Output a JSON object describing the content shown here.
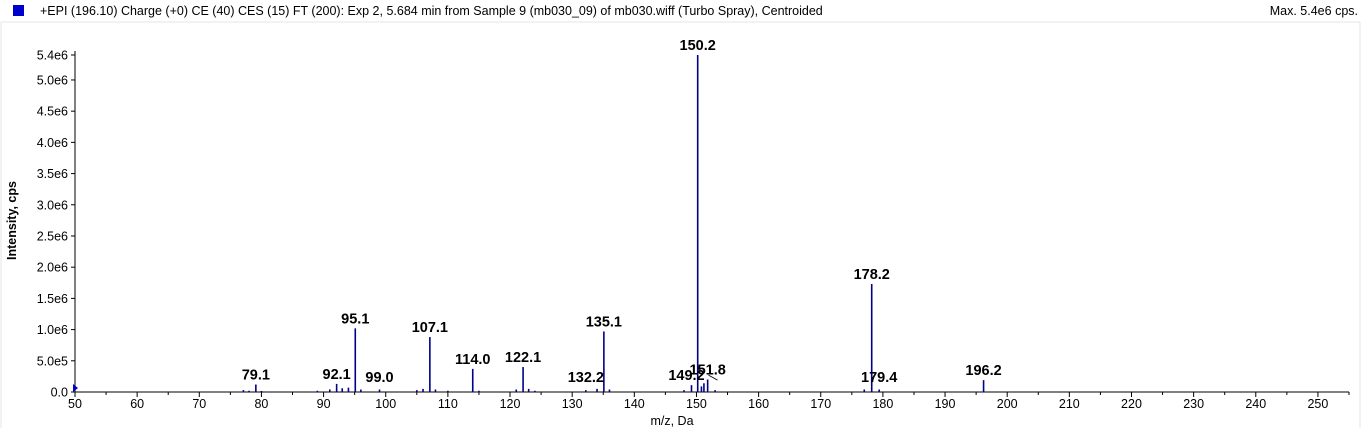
{
  "header": {
    "legend_color": "#0000cc",
    "title": "+EPI (196.10) Charge (+0) CE (40) CES (15) FT (200): Exp 2, 5.684 min from Sample 9 (mb030_09) of mb030.wiff (Turbo Spray), Centroided",
    "max_label": "Max. 5.4e6 cps."
  },
  "chart_data": {
    "type": "bar",
    "title": "+EPI (196.10) Charge (+0) CE (40) CES (15) FT (200): Exp 2, 5.684 min from Sample 9 (mb030_09) of mb030.wiff (Turbo Spray), Centroided",
    "xlabel": "m/z, Da",
    "ylabel": "Intensity, cps",
    "xlim": [
      50,
      255
    ],
    "ylim": [
      0,
      5400000.0
    ],
    "xticks": [
      50,
      60,
      70,
      80,
      90,
      100,
      110,
      120,
      130,
      140,
      150,
      160,
      170,
      180,
      190,
      200,
      210,
      220,
      230,
      240,
      250
    ],
    "yticks": [
      {
        "value": 0,
        "label": "0.0"
      },
      {
        "value": 500000,
        "label": "5.0e5"
      },
      {
        "value": 1000000,
        "label": "1.0e6"
      },
      {
        "value": 1500000,
        "label": "1.5e6"
      },
      {
        "value": 2000000,
        "label": "2.0e6"
      },
      {
        "value": 2500000,
        "label": "2.5e6"
      },
      {
        "value": 3000000,
        "label": "3.0e6"
      },
      {
        "value": 3500000,
        "label": "3.5e6"
      },
      {
        "value": 4000000,
        "label": "4.0e6"
      },
      {
        "value": 4500000,
        "label": "4.5e6"
      },
      {
        "value": 5000000,
        "label": "5.0e6"
      },
      {
        "value": 5400000,
        "label": "5.4e6"
      }
    ],
    "color": "#00008b",
    "peaks": [
      {
        "mz": 77.1,
        "intensity": 30000
      },
      {
        "mz": 78.0,
        "intensity": 20000
      },
      {
        "mz": 79.1,
        "intensity": 120000
      },
      {
        "mz": 80.0,
        "intensity": 15000
      },
      {
        "mz": 89.0,
        "intensity": 20000
      },
      {
        "mz": 91.0,
        "intensity": 40000
      },
      {
        "mz": 92.1,
        "intensity": 130000
      },
      {
        "mz": 93.0,
        "intensity": 60000
      },
      {
        "mz": 94.0,
        "intensity": 70000
      },
      {
        "mz": 95.1,
        "intensity": 1020000
      },
      {
        "mz": 96.0,
        "intensity": 40000
      },
      {
        "mz": 99.0,
        "intensity": 40000
      },
      {
        "mz": 105.0,
        "intensity": 30000
      },
      {
        "mz": 106.0,
        "intensity": 50000
      },
      {
        "mz": 107.1,
        "intensity": 880000
      },
      {
        "mz": 108.0,
        "intensity": 40000
      },
      {
        "mz": 110.0,
        "intensity": 20000
      },
      {
        "mz": 114.0,
        "intensity": 370000
      },
      {
        "mz": 115.0,
        "intensity": 20000
      },
      {
        "mz": 121.0,
        "intensity": 40000
      },
      {
        "mz": 122.1,
        "intensity": 400000
      },
      {
        "mz": 123.0,
        "intensity": 50000
      },
      {
        "mz": 124.0,
        "intensity": 20000
      },
      {
        "mz": 132.2,
        "intensity": 30000
      },
      {
        "mz": 134.0,
        "intensity": 50000
      },
      {
        "mz": 135.1,
        "intensity": 970000
      },
      {
        "mz": 136.0,
        "intensity": 40000
      },
      {
        "mz": 148.0,
        "intensity": 30000
      },
      {
        "mz": 149.2,
        "intensity": 110000
      },
      {
        "mz": 150.2,
        "intensity": 5400000
      },
      {
        "mz": 150.8,
        "intensity": 90000
      },
      {
        "mz": 151.2,
        "intensity": 140000
      },
      {
        "mz": 151.8,
        "intensity": 200000
      },
      {
        "mz": 153.0,
        "intensity": 30000
      },
      {
        "mz": 177.0,
        "intensity": 40000
      },
      {
        "mz": 178.2,
        "intensity": 1730000
      },
      {
        "mz": 179.4,
        "intensity": 40000
      },
      {
        "mz": 196.2,
        "intensity": 190000
      }
    ],
    "peak_labels": [
      {
        "text": "79.1",
        "mz": 79.1,
        "intensity": 120000
      },
      {
        "text": "92.1",
        "mz": 92.1,
        "intensity": 130000
      },
      {
        "text": "95.1",
        "mz": 95.1,
        "intensity": 1020000
      },
      {
        "text": "99.0",
        "mz": 99.0,
        "intensity": 40000
      },
      {
        "text": "107.1",
        "mz": 107.1,
        "intensity": 880000
      },
      {
        "text": "114.0",
        "mz": 114.0,
        "intensity": 370000
      },
      {
        "text": "122.1",
        "mz": 122.1,
        "intensity": 400000
      },
      {
        "text": "132.2",
        "mz": 132.2,
        "intensity": 30000
      },
      {
        "text": "135.1",
        "mz": 135.1,
        "intensity": 970000
      },
      {
        "text": "149.2",
        "mz": 149.2,
        "intensity": 110000
      },
      {
        "text": "150.2",
        "mz": 150.2,
        "intensity": 5400000
      },
      {
        "text": "151.8",
        "mz": 151.8,
        "intensity": 200000
      },
      {
        "text": "178.2",
        "mz": 178.2,
        "intensity": 1730000
      },
      {
        "text": "179.4",
        "mz": 179.4,
        "intensity": 40000
      },
      {
        "text": "196.2",
        "mz": 196.2,
        "intensity": 190000
      }
    ]
  }
}
